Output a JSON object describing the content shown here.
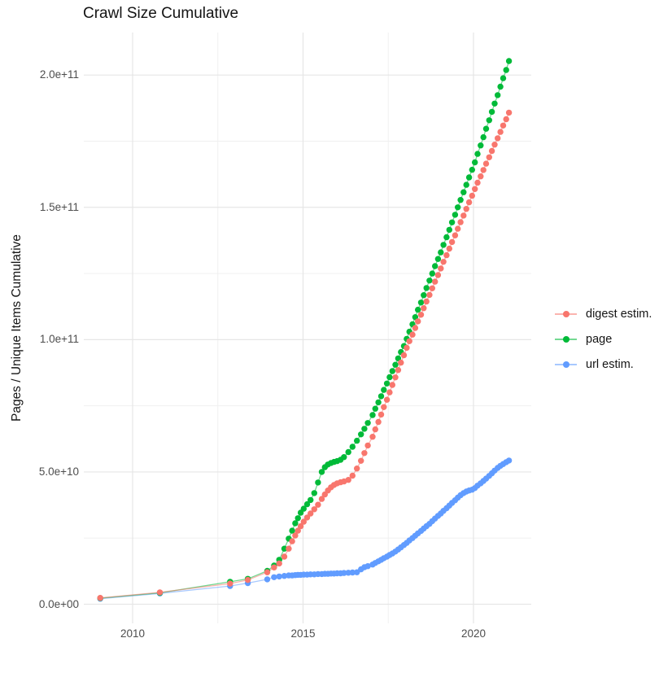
{
  "chart_data": {
    "type": "scatter-line",
    "title": "Crawl Size Cumulative",
    "xlabel": "",
    "ylabel": "Pages / Unique Items Cumulative",
    "value_unit": "billions (1e9 items)",
    "x_unit": "year",
    "xlim": [
      2008.6,
      2021.7
    ],
    "ylim": [
      0,
      216
    ],
    "grid": true,
    "legend_position": "right",
    "x_ticks": [
      {
        "value": 2010,
        "label": "2010"
      },
      {
        "value": 2015,
        "label": "2015"
      },
      {
        "value": 2020,
        "label": "2020"
      }
    ],
    "x_minor": [
      2012.5,
      2017.5
    ],
    "y_ticks": [
      {
        "value": 0,
        "label": "0.0e+00"
      },
      {
        "value": 50,
        "label": "5.0e+10"
      },
      {
        "value": 100,
        "label": "1.0e+11"
      },
      {
        "value": 150,
        "label": "1.5e+11"
      },
      {
        "value": 200,
        "label": "2.0e+11"
      }
    ],
    "y_minor": [
      25,
      75,
      125,
      175
    ],
    "series": [
      {
        "name": "digest estim.",
        "color": "#F8766D",
        "points": [
          [
            2009.05,
            2.4
          ],
          [
            2010.8,
            4.5
          ],
          [
            2012.86,
            7.8
          ],
          [
            2013.38,
            9.2
          ],
          [
            2013.95,
            12.1
          ],
          [
            2014.15,
            13.9
          ],
          [
            2014.3,
            15.4
          ],
          [
            2014.45,
            18.0
          ],
          [
            2014.58,
            21.0
          ],
          [
            2014.68,
            23.8
          ],
          [
            2014.77,
            26.0
          ],
          [
            2014.85,
            27.8
          ],
          [
            2014.93,
            29.5
          ],
          [
            2015.02,
            31.2
          ],
          [
            2015.12,
            32.8
          ],
          [
            2015.22,
            34.3
          ],
          [
            2015.33,
            35.9
          ],
          [
            2015.44,
            37.6
          ],
          [
            2015.55,
            39.8
          ],
          [
            2015.64,
            41.5
          ],
          [
            2015.73,
            43.0
          ],
          [
            2015.82,
            44.2
          ],
          [
            2015.91,
            45.1
          ],
          [
            2016.0,
            45.7
          ],
          [
            2016.1,
            46.1
          ],
          [
            2016.2,
            46.4
          ],
          [
            2016.33,
            47.0
          ],
          [
            2016.45,
            48.6
          ],
          [
            2016.58,
            51.3
          ],
          [
            2016.7,
            54.2
          ],
          [
            2016.8,
            57.1
          ],
          [
            2016.9,
            60.0
          ],
          [
            2017.04,
            63.3
          ],
          [
            2017.12,
            66.1
          ],
          [
            2017.21,
            68.9
          ],
          [
            2017.29,
            71.7
          ],
          [
            2017.37,
            74.5
          ],
          [
            2017.46,
            77.3
          ],
          [
            2017.54,
            80.1
          ],
          [
            2017.62,
            82.9
          ],
          [
            2017.71,
            85.7
          ],
          [
            2017.79,
            88.5
          ],
          [
            2017.87,
            91.3
          ],
          [
            2017.96,
            94.1
          ],
          [
            2018.04,
            96.9
          ],
          [
            2018.12,
            99.4
          ],
          [
            2018.21,
            101.9
          ],
          [
            2018.29,
            104.4
          ],
          [
            2018.37,
            106.9
          ],
          [
            2018.46,
            109.4
          ],
          [
            2018.54,
            111.9
          ],
          [
            2018.62,
            114.4
          ],
          [
            2018.71,
            116.9
          ],
          [
            2018.79,
            119.4
          ],
          [
            2018.87,
            121.9
          ],
          [
            2018.96,
            124.4
          ],
          [
            2019.04,
            126.9
          ],
          [
            2019.12,
            129.4
          ],
          [
            2019.21,
            131.9
          ],
          [
            2019.29,
            134.4
          ],
          [
            2019.37,
            136.9
          ],
          [
            2019.46,
            139.4
          ],
          [
            2019.54,
            141.9
          ],
          [
            2019.62,
            144.4
          ],
          [
            2019.71,
            146.9
          ],
          [
            2019.79,
            149.4
          ],
          [
            2019.87,
            151.9
          ],
          [
            2019.96,
            154.4
          ],
          [
            2020.04,
            156.9
          ],
          [
            2020.12,
            159.3
          ],
          [
            2020.21,
            161.7
          ],
          [
            2020.29,
            164.1
          ],
          [
            2020.37,
            166.5
          ],
          [
            2020.46,
            168.9
          ],
          [
            2020.54,
            171.3
          ],
          [
            2020.62,
            173.7
          ],
          [
            2020.71,
            176.1
          ],
          [
            2020.79,
            178.5
          ],
          [
            2020.87,
            180.9
          ],
          [
            2020.96,
            183.3
          ],
          [
            2021.04,
            185.8
          ]
        ]
      },
      {
        "name": "page",
        "color": "#00BA38",
        "points": [
          [
            2009.05,
            2.3
          ],
          [
            2010.8,
            4.3
          ],
          [
            2012.86,
            8.5
          ],
          [
            2013.38,
            9.6
          ],
          [
            2013.95,
            12.6
          ],
          [
            2014.15,
            14.6
          ],
          [
            2014.3,
            16.8
          ],
          [
            2014.45,
            21.0
          ],
          [
            2014.58,
            24.8
          ],
          [
            2014.68,
            27.8
          ],
          [
            2014.77,
            30.6
          ],
          [
            2014.85,
            32.5
          ],
          [
            2014.93,
            34.6
          ],
          [
            2015.02,
            36.1
          ],
          [
            2015.12,
            37.8
          ],
          [
            2015.22,
            39.4
          ],
          [
            2015.33,
            42.0
          ],
          [
            2015.44,
            46.0
          ],
          [
            2015.55,
            50.0
          ],
          [
            2015.64,
            51.8
          ],
          [
            2015.73,
            52.8
          ],
          [
            2015.82,
            53.4
          ],
          [
            2015.91,
            53.8
          ],
          [
            2016.0,
            54.1
          ],
          [
            2016.1,
            54.6
          ],
          [
            2016.2,
            55.6
          ],
          [
            2016.33,
            57.5
          ],
          [
            2016.45,
            59.5
          ],
          [
            2016.58,
            61.8
          ],
          [
            2016.7,
            64.2
          ],
          [
            2016.8,
            66.3
          ],
          [
            2016.9,
            68.5
          ],
          [
            2017.04,
            71.5
          ],
          [
            2017.12,
            73.9
          ],
          [
            2017.21,
            76.3
          ],
          [
            2017.29,
            78.6
          ],
          [
            2017.37,
            81.0
          ],
          [
            2017.46,
            83.4
          ],
          [
            2017.54,
            85.8
          ],
          [
            2017.62,
            88.1
          ],
          [
            2017.71,
            90.5
          ],
          [
            2017.79,
            92.9
          ],
          [
            2017.87,
            95.3
          ],
          [
            2017.96,
            97.6
          ],
          [
            2018.04,
            100.3
          ],
          [
            2018.12,
            103.0
          ],
          [
            2018.21,
            105.8
          ],
          [
            2018.29,
            108.5
          ],
          [
            2018.37,
            111.3
          ],
          [
            2018.46,
            114.0
          ],
          [
            2018.54,
            116.8
          ],
          [
            2018.62,
            119.5
          ],
          [
            2018.71,
            122.3
          ],
          [
            2018.79,
            125.0
          ],
          [
            2018.87,
            127.8
          ],
          [
            2018.96,
            130.5
          ],
          [
            2019.04,
            133.0
          ],
          [
            2019.12,
            135.8
          ],
          [
            2019.21,
            138.7
          ],
          [
            2019.29,
            141.5
          ],
          [
            2019.37,
            144.3
          ],
          [
            2019.46,
            147.2
          ],
          [
            2019.54,
            150.0
          ],
          [
            2019.62,
            152.8
          ],
          [
            2019.71,
            155.7
          ],
          [
            2019.79,
            158.5
          ],
          [
            2019.87,
            161.3
          ],
          [
            2019.96,
            164.2
          ],
          [
            2020.04,
            167.0
          ],
          [
            2020.12,
            170.2
          ],
          [
            2020.21,
            173.4
          ],
          [
            2020.29,
            176.5
          ],
          [
            2020.37,
            179.7
          ],
          [
            2020.46,
            182.9
          ],
          [
            2020.54,
            186.1
          ],
          [
            2020.62,
            189.2
          ],
          [
            2020.71,
            192.4
          ],
          [
            2020.79,
            195.6
          ],
          [
            2020.87,
            198.8
          ],
          [
            2020.96,
            201.9
          ],
          [
            2021.04,
            205.3
          ]
        ]
      },
      {
        "name": "url estim.",
        "color": "#619CFF",
        "points": [
          [
            2009.05,
            2.1
          ],
          [
            2010.8,
            4.1
          ],
          [
            2012.86,
            6.9
          ],
          [
            2013.38,
            8.0
          ],
          [
            2013.95,
            9.4
          ],
          [
            2014.15,
            10.2
          ],
          [
            2014.3,
            10.5
          ],
          [
            2014.45,
            10.7
          ],
          [
            2014.58,
            10.9
          ],
          [
            2014.68,
            10.9
          ],
          [
            2014.77,
            11.0
          ],
          [
            2014.85,
            11.1
          ],
          [
            2014.93,
            11.1
          ],
          [
            2015.02,
            11.2
          ],
          [
            2015.12,
            11.2
          ],
          [
            2015.22,
            11.3
          ],
          [
            2015.33,
            11.3
          ],
          [
            2015.44,
            11.4
          ],
          [
            2015.55,
            11.4
          ],
          [
            2015.64,
            11.5
          ],
          [
            2015.73,
            11.5
          ],
          [
            2015.82,
            11.6
          ],
          [
            2015.91,
            11.6
          ],
          [
            2016.0,
            11.7
          ],
          [
            2016.1,
            11.7
          ],
          [
            2016.2,
            11.8
          ],
          [
            2016.33,
            11.9
          ],
          [
            2016.45,
            12.0
          ],
          [
            2016.58,
            12.1
          ],
          [
            2016.7,
            13.2
          ],
          [
            2016.8,
            14.0
          ],
          [
            2016.9,
            14.4
          ],
          [
            2017.04,
            15.0
          ],
          [
            2017.12,
            15.6
          ],
          [
            2017.21,
            16.2
          ],
          [
            2017.29,
            16.8
          ],
          [
            2017.37,
            17.4
          ],
          [
            2017.46,
            18.0
          ],
          [
            2017.54,
            18.6
          ],
          [
            2017.62,
            19.2
          ],
          [
            2017.71,
            19.9
          ],
          [
            2017.79,
            20.7
          ],
          [
            2017.87,
            21.5
          ],
          [
            2017.96,
            22.4
          ],
          [
            2018.04,
            23.2
          ],
          [
            2018.12,
            24.1
          ],
          [
            2018.21,
            25.0
          ],
          [
            2018.29,
            25.9
          ],
          [
            2018.37,
            26.8
          ],
          [
            2018.46,
            27.7
          ],
          [
            2018.54,
            28.6
          ],
          [
            2018.62,
            29.5
          ],
          [
            2018.71,
            30.4
          ],
          [
            2018.79,
            31.4
          ],
          [
            2018.87,
            32.4
          ],
          [
            2018.96,
            33.4
          ],
          [
            2019.04,
            34.3
          ],
          [
            2019.12,
            35.3
          ],
          [
            2019.21,
            36.3
          ],
          [
            2019.29,
            37.3
          ],
          [
            2019.37,
            38.3
          ],
          [
            2019.46,
            39.3
          ],
          [
            2019.54,
            40.3
          ],
          [
            2019.62,
            41.2
          ],
          [
            2019.71,
            42.0
          ],
          [
            2019.79,
            42.6
          ],
          [
            2019.87,
            43.0
          ],
          [
            2019.96,
            43.3
          ],
          [
            2020.04,
            43.9
          ],
          [
            2020.12,
            44.8
          ],
          [
            2020.21,
            45.7
          ],
          [
            2020.29,
            46.6
          ],
          [
            2020.37,
            47.5
          ],
          [
            2020.46,
            48.5
          ],
          [
            2020.54,
            49.5
          ],
          [
            2020.62,
            50.5
          ],
          [
            2020.71,
            51.5
          ],
          [
            2020.79,
            52.3
          ],
          [
            2020.87,
            53.0
          ],
          [
            2020.96,
            53.7
          ],
          [
            2021.04,
            54.3
          ]
        ]
      }
    ]
  }
}
